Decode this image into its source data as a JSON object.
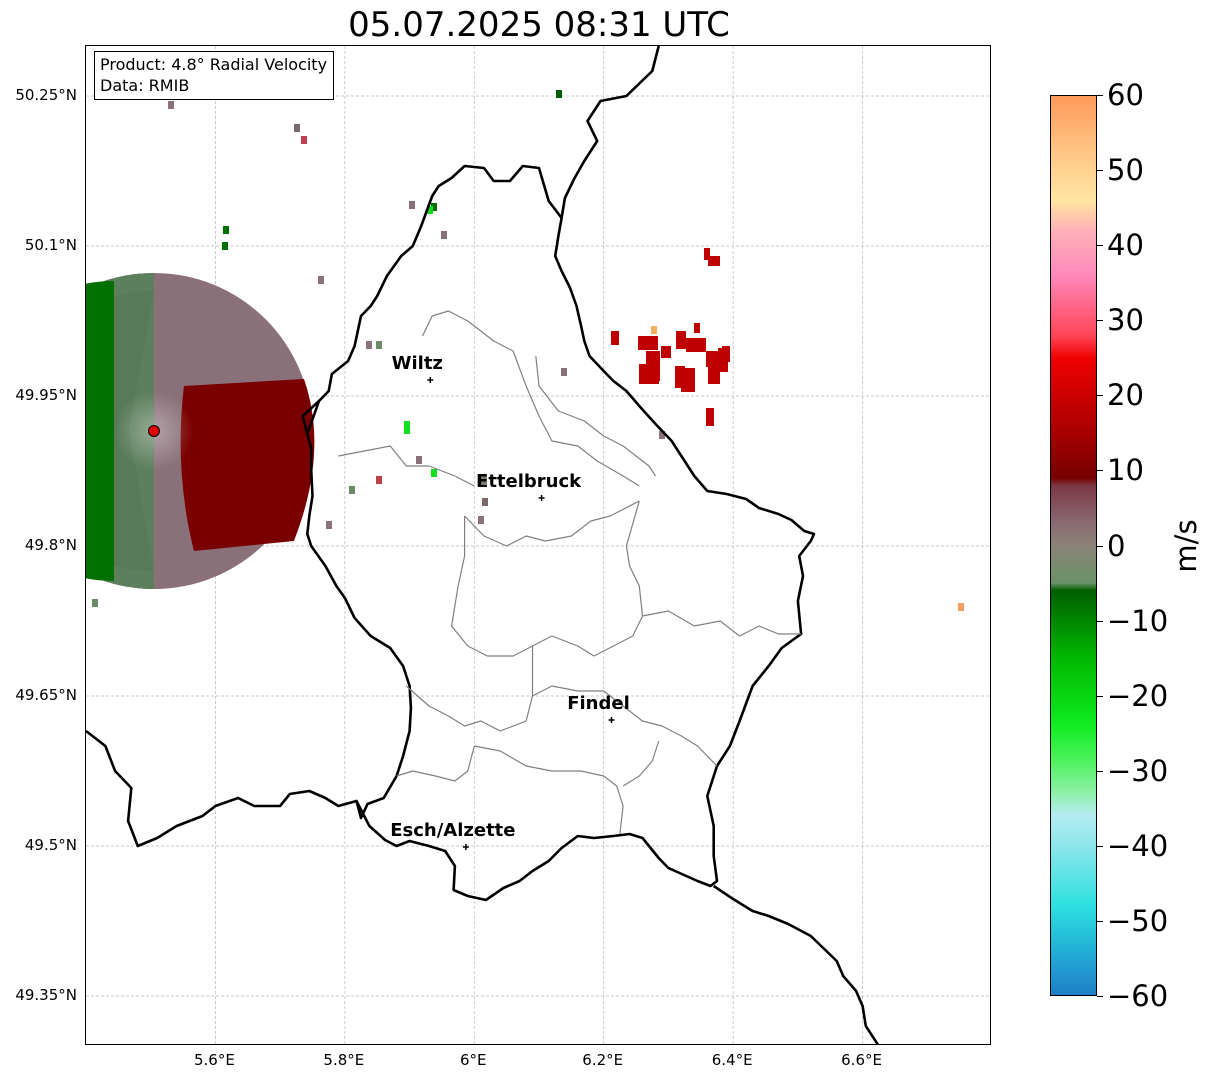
{
  "title": "05.07.2025 08:31 UTC",
  "info": {
    "product": "Product: 4.8° Radial Velocity",
    "data": "Data: RMIB"
  },
  "map": {
    "lon_range": [
      5.4,
      6.8
    ],
    "lat_range": [
      49.3,
      50.3
    ],
    "lat_ticks": [
      "50.25°N",
      "50.1°N",
      "49.95°N",
      "49.8°N",
      "49.65°N",
      "49.5°N",
      "49.35°N"
    ],
    "lon_ticks": [
      "5.6°E",
      "5.8°E",
      "6°E",
      "6.2°E",
      "6.4°E",
      "6.6°E"
    ],
    "gridlines": true,
    "radar_site": {
      "lon": 5.505,
      "lat": 49.915,
      "marker_color": "#e00000"
    },
    "cities": [
      {
        "name": "Wiltz",
        "lon": 5.932,
        "lat": 49.966
      },
      {
        "name": "Ettelbruck",
        "lon": 6.104,
        "lat": 49.848
      },
      {
        "name": "Findel",
        "lon": 6.212,
        "lat": 49.626
      },
      {
        "name": "Esch/Alzette",
        "lon": 5.987,
        "lat": 49.499
      }
    ]
  },
  "colorbar": {
    "label": "m/s",
    "ticks": [
      "60",
      "50",
      "40",
      "30",
      "20",
      "10",
      "0",
      "−10",
      "−20",
      "−30",
      "−40",
      "−50",
      "−60"
    ],
    "range": [
      -60,
      60
    ],
    "stops": [
      {
        "v": -60,
        "c": "#1e7fc8"
      },
      {
        "v": -54,
        "c": "#22b0d6"
      },
      {
        "v": -48,
        "c": "#2ee0e0"
      },
      {
        "v": -40,
        "c": "#8ee6ea"
      },
      {
        "v": -36,
        "c": "#b4ecf2"
      },
      {
        "v": -33,
        "c": "#8ef0a8"
      },
      {
        "v": -29,
        "c": "#52f262"
      },
      {
        "v": -24,
        "c": "#10ec20"
      },
      {
        "v": -15,
        "c": "#00b800"
      },
      {
        "v": -6,
        "c": "#005e00"
      },
      {
        "v": -5,
        "c": "#6a9268"
      },
      {
        "v": 0,
        "c": "#8a8276"
      },
      {
        "v": 3,
        "c": "#8a6a74"
      },
      {
        "v": 8,
        "c": "#7a3844"
      },
      {
        "v": 9,
        "c": "#760000"
      },
      {
        "v": 16,
        "c": "#b00000"
      },
      {
        "v": 25,
        "c": "#f00000"
      },
      {
        "v": 28,
        "c": "#ff4456"
      },
      {
        "v": 36,
        "c": "#ff88bb"
      },
      {
        "v": 42,
        "c": "#ffb0b8"
      },
      {
        "v": 46,
        "c": "#ffe6a0"
      },
      {
        "v": 52,
        "c": "#ffc888"
      },
      {
        "v": 60,
        "c": "#ff9a5a"
      }
    ]
  },
  "colors": {
    "border_national": "#000000",
    "border_canton": "#808080",
    "approaching": "#007000",
    "receding": "#7a0000",
    "near_zero": "#8a7078"
  }
}
